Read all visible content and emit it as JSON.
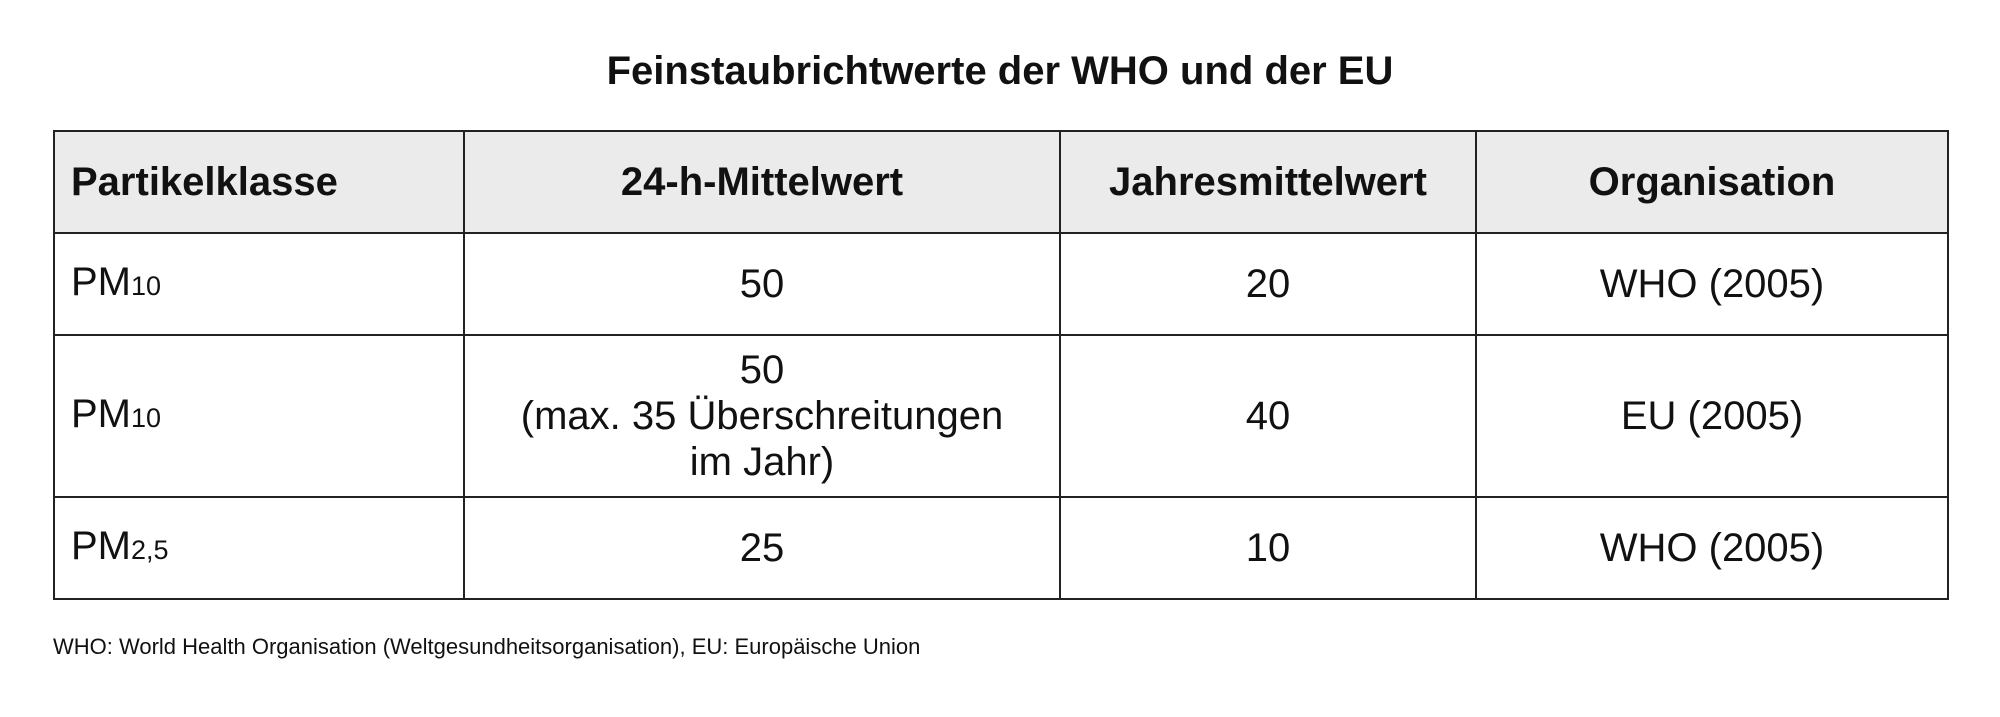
{
  "title": "Feinstaubrichtwerte der WHO und der EU",
  "table": {
    "headers": [
      "Partikelklasse",
      "24-h-Mittelwert",
      "Jahresmittelwert",
      "Organisation"
    ],
    "rows": [
      {
        "particle": "PM",
        "particle_sub": "10",
        "daily": [
          "50"
        ],
        "annual": "20",
        "org": "WHO (2005)"
      },
      {
        "particle": "PM",
        "particle_sub": "10",
        "daily": [
          "50",
          "(max. 35 Überschreitungen",
          "im Jahr)"
        ],
        "annual": "40",
        "org": "EU (2005)"
      },
      {
        "particle": "PM",
        "particle_sub": "2,5",
        "daily": [
          "25"
        ],
        "annual": "10",
        "org": "WHO (2005)"
      }
    ]
  },
  "footnote": "WHO: World Health Organisation (Weltgesundheitsorganisation), EU: Europäische Union"
}
